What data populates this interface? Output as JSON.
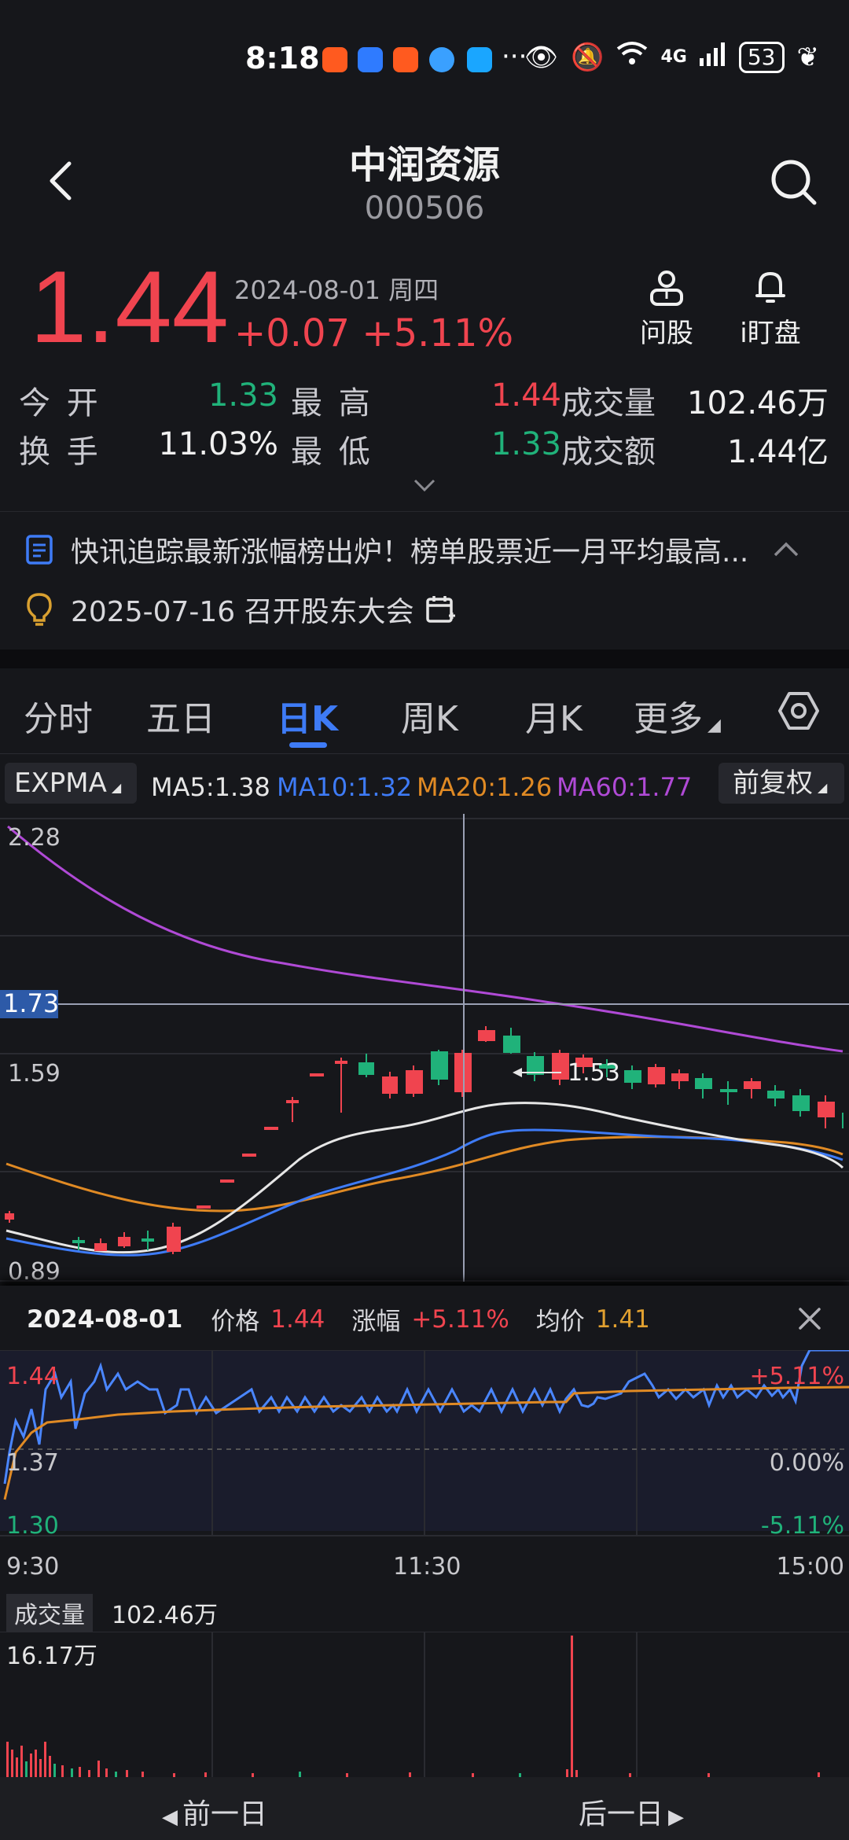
{
  "status_bar": {
    "time": "8:18",
    "network": "4G",
    "battery": "53"
  },
  "header": {
    "title": "中润资源",
    "code": "000506"
  },
  "quote": {
    "price": "1.44",
    "date": "2024-08-01 周四",
    "change": "+0.07 +5.11%",
    "btn_ask": "问股",
    "btn_watch": "i盯盘",
    "colors": {
      "up": "#f0444f",
      "down": "#20b27a",
      "accent": "#3e7bf6"
    }
  },
  "stats": {
    "open_label": "今 开",
    "open": "1.33",
    "high_label": "最 高",
    "high": "1.44",
    "vol_label": "成交量",
    "vol": "102.46万",
    "turnover_label": "换 手",
    "turnover": "11.03%",
    "low_label": "最 低",
    "low": "1.33",
    "amount_label": "成交额",
    "amount": "1.44亿"
  },
  "news": {
    "headline": "快讯追踪最新涨幅榜出炉！榜单股票近一月平均最高...",
    "event": "2025-07-16 召开股东大会"
  },
  "tabs": [
    "分时",
    "五日",
    "日K",
    "周K",
    "月K",
    "更多"
  ],
  "active_tab": "日K",
  "indicators": {
    "expma": "EXPMA",
    "ma5": "MA5:1.38",
    "ma10": "MA10:1.32",
    "ma20": "MA20:1.26",
    "ma60": "MA60:1.77",
    "adjust": "前复权",
    "colors": {
      "ma5": "#e6e6e6",
      "ma10": "#3e7bf6",
      "ma20": "#e08a24",
      "ma60": "#b04ad6"
    }
  },
  "kline": {
    "axis_top": "2.28",
    "axis_cross": "1.73",
    "axis_mid": "1.59",
    "axis_bottom": "0.89",
    "peak_label": "1.53"
  },
  "timeshare": {
    "date": "2024-08-01",
    "price_label": "价格",
    "price": "1.44",
    "change_label": "涨幅",
    "change": "+5.11%",
    "avg_label": "均价",
    "avg": "1.41",
    "y_top": "1.44",
    "y_mid": "1.37",
    "y_bot": "1.30",
    "pct_top": "+5.11%",
    "pct_mid": "0.00%",
    "pct_bot": "-5.11%",
    "t_start": "9:30",
    "t_mid": "11:30",
    "t_end": "15:00",
    "vol_label": "成交量",
    "vol_value": "102.46万",
    "vol_max": "16.17万"
  },
  "footer": {
    "prev": "前一日",
    "next": "后一日"
  }
}
